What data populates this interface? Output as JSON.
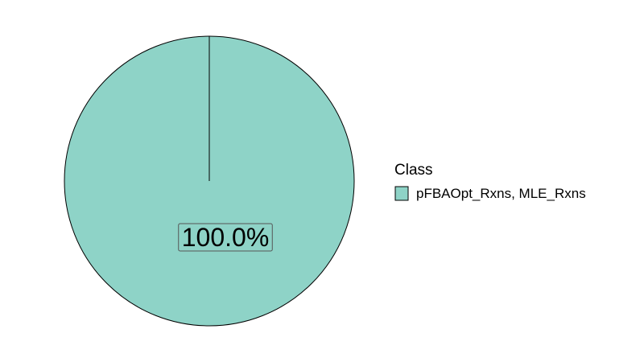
{
  "chart_data": {
    "type": "pie",
    "title": "",
    "legend_title": "Class",
    "legend_position": "right",
    "slices": [
      {
        "label": "pFBAOpt_Rxns, MLE_Rxns",
        "value": 100.0,
        "percent_label": "100.0%",
        "color": "#8ed3c7"
      }
    ]
  }
}
